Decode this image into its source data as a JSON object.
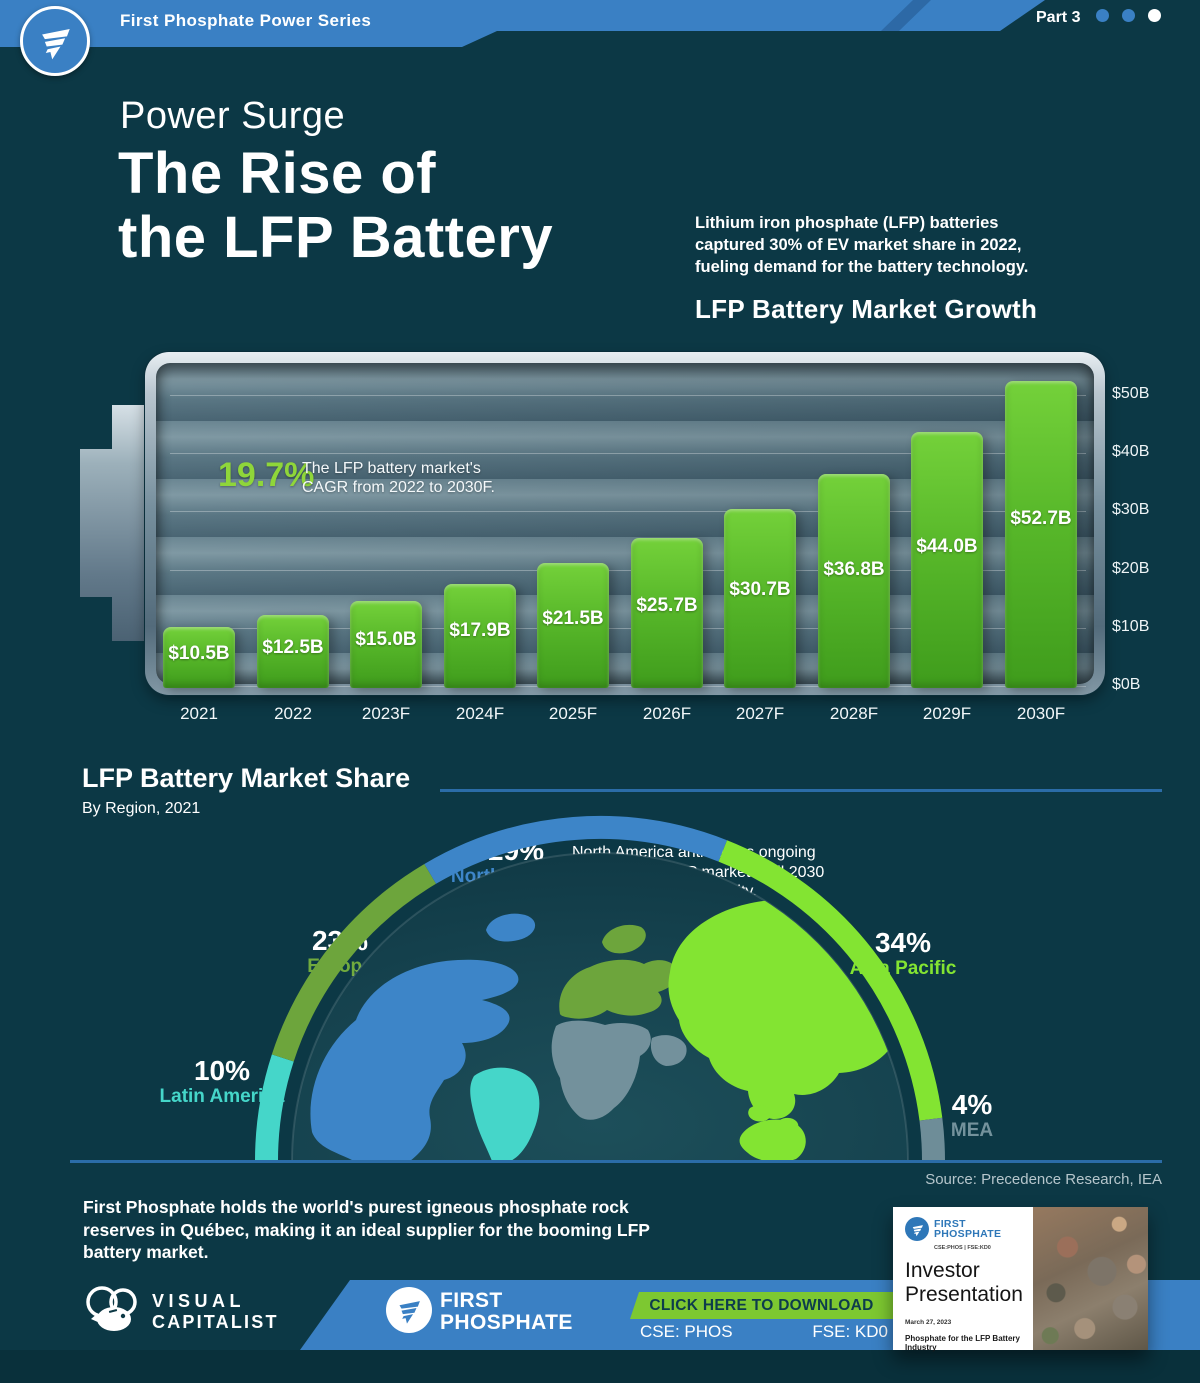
{
  "header": {
    "series_label": "First Phosphate Power Series",
    "part_label": "Part 3",
    "progress_dots": [
      {
        "state": "inactive"
      },
      {
        "state": "inactive"
      },
      {
        "state": "active"
      }
    ]
  },
  "title": {
    "kicker": "Power Surge",
    "line1": "The Rise of",
    "line2": "the LFP Battery"
  },
  "intro": "Lithium iron phosphate (LFP) batteries captured 30% of EV market share in 2022, fueling demand for the battery technology.",
  "chart_data": [
    {
      "type": "bar",
      "title": "LFP Battery Market Growth",
      "categories": [
        "2021",
        "2022",
        "2023F",
        "2024F",
        "2025F",
        "2026F",
        "2027F",
        "2028F",
        "2029F",
        "2030F"
      ],
      "values": [
        10.5,
        12.5,
        15.0,
        17.9,
        21.5,
        25.7,
        30.7,
        36.8,
        44.0,
        52.7
      ],
      "bar_labels": [
        "$10.5B",
        "$12.5B",
        "$15.0B",
        "$17.9B",
        "$21.5B",
        "$25.7B",
        "$30.7B",
        "$36.8B",
        "$44.0B",
        "$52.7B"
      ],
      "yticks": [
        "$0B",
        "$10B",
        "$20B",
        "$30B",
        "$40B",
        "$50B"
      ],
      "ylim": [
        0,
        55
      ],
      "unit": "USD billions",
      "bar_color": "#54b427",
      "annotation": {
        "value": "19.7%",
        "text": "The LFP battery market's CAGR from 2022 to 2030F."
      }
    },
    {
      "type": "pie",
      "layout": "semicircle-arc",
      "title": "LFP Battery Market Share",
      "subtitle": "By Region, 2021",
      "categories": [
        "Latin America",
        "Europe",
        "North America",
        "Asia Pacific",
        "MEA"
      ],
      "values": [
        10,
        23,
        29,
        34,
        4
      ],
      "pct_labels": [
        "10%",
        "23%",
        "29%",
        "34%",
        "4%"
      ],
      "colors": [
        "#45d6c9",
        "#6da53c",
        "#3d85c8",
        "#83e432",
        "#6e8d98"
      ],
      "note": "North America anticipates ongoing growth in the LFP market until 2030 due to its rising popularity.",
      "source": "Source: Precedence Research, IEA"
    }
  ],
  "closing": "First Phosphate holds the world's purest igneous phosphate rock reserves in Québec, making it an ideal supplier for the booming LFP battery market.",
  "footer": {
    "vc_line1": "VISUAL",
    "vc_line2": "CAPITALIST",
    "fp_line1": "FIRST",
    "fp_line2": "PHOSPHATE",
    "cta": "CLICK HERE TO DOWNLOAD",
    "ticker_cse": "CSE: PHOS",
    "ticker_fse": "FSE: KD0"
  },
  "card": {
    "brand_line1": "FIRST",
    "brand_line2": "PHOSPHATE",
    "tickers": "CSE:PHOS  |  FSE:KD0",
    "title": "Investor Presentation",
    "date": "March 27, 2023",
    "tagline": "Phosphate for the LFP Battery Industry"
  }
}
